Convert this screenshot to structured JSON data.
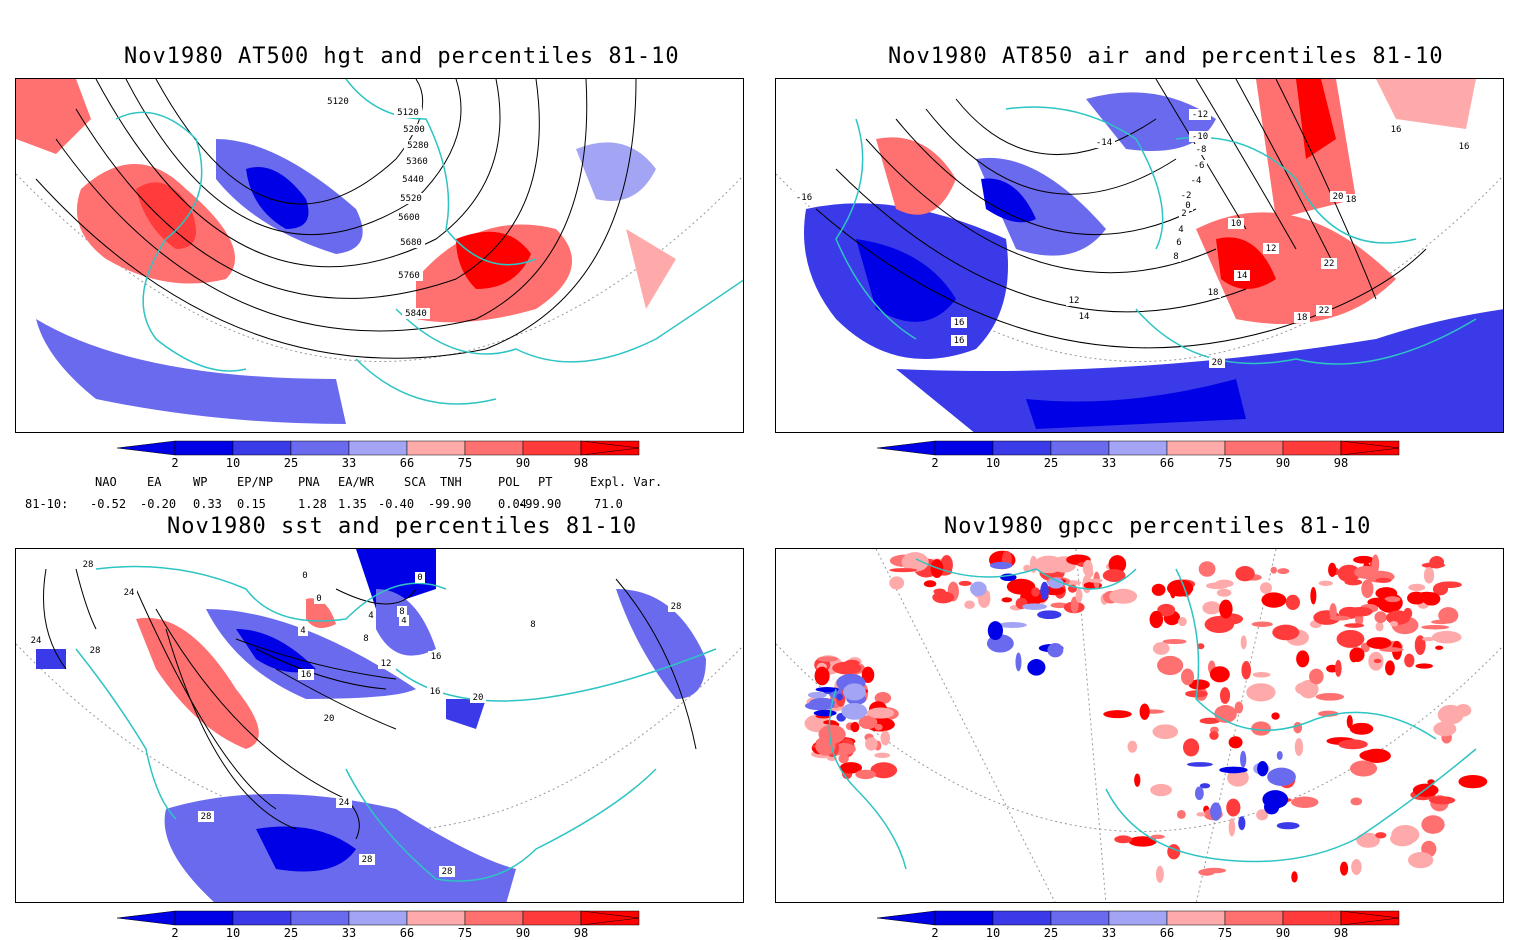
{
  "panels": [
    {
      "title": "Nov1980 AT500 hgt and percentiles 81-10",
      "contour_labels": [
        "5120",
        "5120",
        "5200",
        "5280",
        "5360",
        "5440",
        "5520",
        "5600",
        "5680",
        "5760",
        "5840"
      ]
    },
    {
      "title": "Nov1980 AT850 air and percentiles 81-10",
      "contour_labels": [
        "-16",
        "-14",
        "-12",
        "-10",
        "-8",
        "-6",
        "-4",
        "-2",
        "0",
        "2",
        "4",
        "6",
        "8",
        "10",
        "12",
        "12",
        "14",
        "14",
        "16",
        "16",
        "16",
        "16",
        "18",
        "18",
        "18",
        "20",
        "20",
        "22",
        "22"
      ]
    },
    {
      "title": "Nov1980 sst and percentiles 81-10",
      "contour_labels": [
        "28",
        "24",
        "24",
        "28",
        "0",
        "0",
        "0",
        "4",
        "4",
        "4",
        "8",
        "8",
        "12",
        "16",
        "16",
        "20",
        "20",
        "24",
        "28",
        "28",
        "28",
        "28",
        "16",
        "8"
      ]
    },
    {
      "title": "Nov1980 gpcc percentiles 81-10",
      "contour_labels": []
    }
  ],
  "colorbar": {
    "labels": [
      "2",
      "10",
      "25",
      "33",
      "66",
      "75",
      "90",
      "98"
    ],
    "colors": {
      "blue": [
        "#0000e6",
        "#3a3ae8",
        "#6a6aee",
        "#a4a4f5"
      ],
      "red": [
        "#ffaaaa",
        "#ff7070",
        "#ff3b3b",
        "#ff0000"
      ]
    }
  },
  "teleconnections": {
    "header": [
      "NAO",
      "EA",
      "WP",
      "EP/NP",
      "PNA",
      "EA/WR",
      "SCA",
      "TNH",
      "POL",
      "PT",
      "Expl. Var."
    ],
    "row_label": "81-10:",
    "values": [
      "-0.52",
      "-0.20",
      "0.33",
      "0.15",
      "1.28",
      "1.35",
      "-0.40",
      "-99.90",
      "0.04",
      "-99.90",
      "71.0"
    ]
  },
  "colors": {
    "coastline": "#2ec4c4",
    "frame": "#000000"
  }
}
